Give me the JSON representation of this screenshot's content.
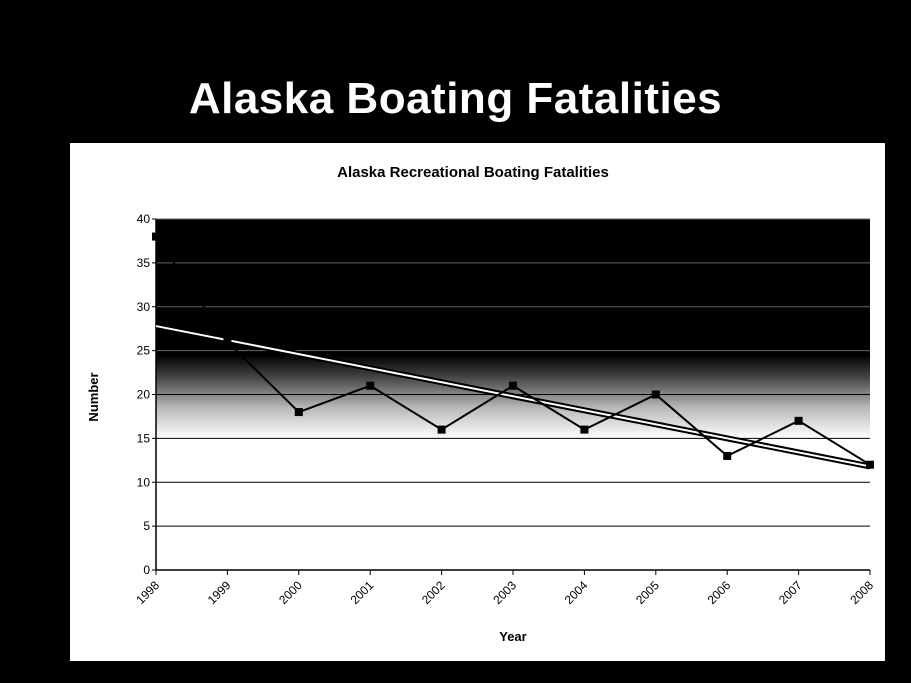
{
  "slide": {
    "title": "Alaska Boating Fatalities"
  },
  "colors": {
    "background": "#000000",
    "panel": "#ffffff",
    "plot_band": "#000000",
    "series_line": "#000000",
    "trend_line": "#000000"
  },
  "chart_data": {
    "type": "line",
    "title": "Alaska Recreational Boating Fatalities",
    "xlabel": "Year",
    "ylabel": "Number",
    "ylim": [
      0,
      40
    ],
    "yticks": [
      0,
      5,
      10,
      15,
      20,
      25,
      30,
      35,
      40
    ],
    "grid": "horizontal",
    "legend": "none",
    "categories": [
      "1998",
      "1999",
      "2000",
      "2001",
      "2002",
      "2003",
      "2004",
      "2005",
      "2006",
      "2007",
      "2008"
    ],
    "series": [
      {
        "values": [
          38,
          26,
          18,
          21,
          16,
          21,
          16,
          20,
          13,
          17,
          12
        ],
        "marker": "square"
      }
    ],
    "trendline": {
      "type": "linear",
      "start": 27.8,
      "end": 11.8
    }
  }
}
